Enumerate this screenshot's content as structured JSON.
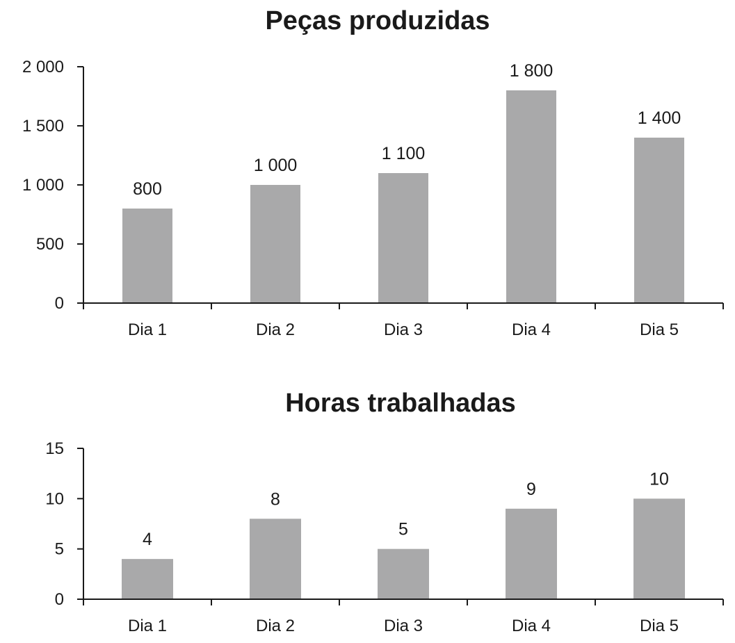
{
  "chart_data": [
    {
      "type": "bar",
      "title": "Peças produzidas",
      "categories": [
        "Dia 1",
        "Dia 2",
        "Dia 3",
        "Dia 4",
        "Dia 5"
      ],
      "values": [
        800,
        1000,
        1100,
        1800,
        1400
      ],
      "data_labels": [
        "800",
        "1 000",
        "1 100",
        "1 800",
        "1 400"
      ],
      "y_ticks": [
        0,
        500,
        1000,
        1500,
        2000
      ],
      "y_tick_labels": [
        "0",
        "500",
        "1 000",
        "1 500",
        "2 000"
      ],
      "ylim": [
        0,
        2000
      ],
      "xlabel": "",
      "ylabel": "",
      "grid": false,
      "bar_color": "#a9a9aa",
      "axis_color": "#1a1a1a"
    },
    {
      "type": "bar",
      "title": "Horas trabalhadas",
      "categories": [
        "Dia 1",
        "Dia 2",
        "Dia 3",
        "Dia 4",
        "Dia 5"
      ],
      "values": [
        4,
        8,
        5,
        9,
        10
      ],
      "data_labels": [
        "4",
        "8",
        "5",
        "9",
        "10"
      ],
      "y_ticks": [
        0,
        5,
        10,
        15
      ],
      "y_tick_labels": [
        "0",
        "5",
        "10",
        "15"
      ],
      "ylim": [
        0,
        15
      ],
      "xlabel": "",
      "ylabel": "",
      "grid": false,
      "bar_color": "#a9a9aa",
      "axis_color": "#1a1a1a"
    }
  ]
}
